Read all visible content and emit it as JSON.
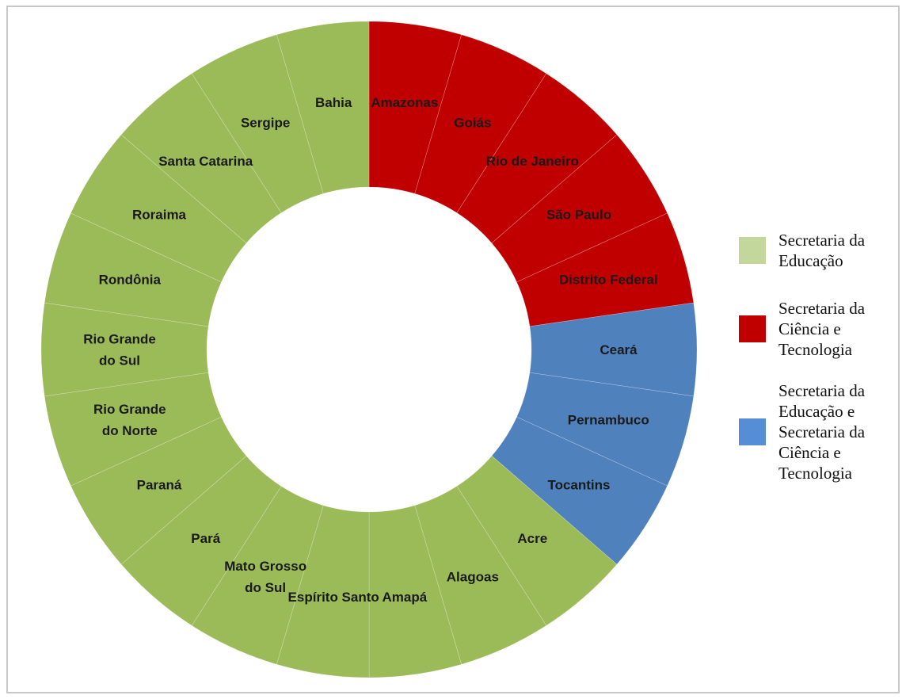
{
  "chart_data": {
    "type": "pie",
    "variant": "donut",
    "title": "",
    "start_angle_deg": 0,
    "direction": "clockwise",
    "slices": [
      {
        "label": "Amazonas",
        "value": 1,
        "group": "Secretaria da Ciência e Tecnologia"
      },
      {
        "label": "Goiás",
        "value": 1,
        "group": "Secretaria da Ciência e Tecnologia"
      },
      {
        "label": "Rio de Janeiro",
        "value": 1,
        "group": "Secretaria da Ciência e Tecnologia"
      },
      {
        "label": "São Paulo",
        "value": 1,
        "group": "Secretaria da Ciência e Tecnologia"
      },
      {
        "label": "Distrito Federal",
        "value": 1,
        "group": "Secretaria da Ciência e Tecnologia"
      },
      {
        "label": "Ceará",
        "value": 1,
        "group": "Secretaria da Educação e Secretaria da Ciência e Tecnologia"
      },
      {
        "label": "Pernambuco",
        "value": 1,
        "group": "Secretaria da Educação e Secretaria da Ciência e Tecnologia"
      },
      {
        "label": "Tocantins",
        "value": 1,
        "group": "Secretaria da Educação e Secretaria da Ciência e Tecnologia"
      },
      {
        "label": "Acre",
        "value": 1,
        "group": "Secretaria da Educação"
      },
      {
        "label": "Alagoas",
        "value": 1,
        "group": "Secretaria da Educação"
      },
      {
        "label": "Amapá",
        "value": 1,
        "group": "Secretaria da Educação"
      },
      {
        "label": "Espírito Santo",
        "value": 1,
        "group": "Secretaria da Educação"
      },
      {
        "label": "Mato Grosso do Sul",
        "value": 1,
        "group": "Secretaria da Educação"
      },
      {
        "label": "Pará",
        "value": 1,
        "group": "Secretaria da Educação"
      },
      {
        "label": "Paraná",
        "value": 1,
        "group": "Secretaria da Educação"
      },
      {
        "label": "Rio Grande do Norte",
        "value": 1,
        "group": "Secretaria da Educação"
      },
      {
        "label": "Rio Grande do Sul",
        "value": 1,
        "group": "Secretaria da Educação"
      },
      {
        "label": "Rondônia",
        "value": 1,
        "group": "Secretaria da Educação"
      },
      {
        "label": "Roraima",
        "value": 1,
        "group": "Secretaria da Educação"
      },
      {
        "label": "Santa Catarina",
        "value": 1,
        "group": "Secretaria da Educação"
      },
      {
        "label": "Sergipe",
        "value": 1,
        "group": "Secretaria da Educação"
      },
      {
        "label": "Bahia",
        "value": 1,
        "group": "Secretaria da Educação"
      }
    ],
    "legend_position": "right",
    "legend": [
      {
        "name": "Secretaria da Educação",
        "color": "#c3d69b",
        "lines": [
          "Secretaria da",
          "Educação"
        ]
      },
      {
        "name": "Secretaria da Ciência e Tecnologia",
        "color": "#c00000",
        "lines": [
          "Secretaria da",
          "Ciência e",
          "Tecnologia"
        ]
      },
      {
        "name": "Secretaria da Educação e Secretaria da Ciência e Tecnologia",
        "color": "#558ed5",
        "lines": [
          "Secretaria da",
          "Educação e",
          "Secretaria da",
          "Ciência e",
          "Tecnologia"
        ]
      }
    ],
    "slice_colors": {
      "Secretaria da Educação": "#9bbb59",
      "Secretaria da Ciência e Tecnologia": "#c00000",
      "Secretaria da Educação e Secretaria da Ciência e Tecnologia": "#4f81bd"
    }
  }
}
